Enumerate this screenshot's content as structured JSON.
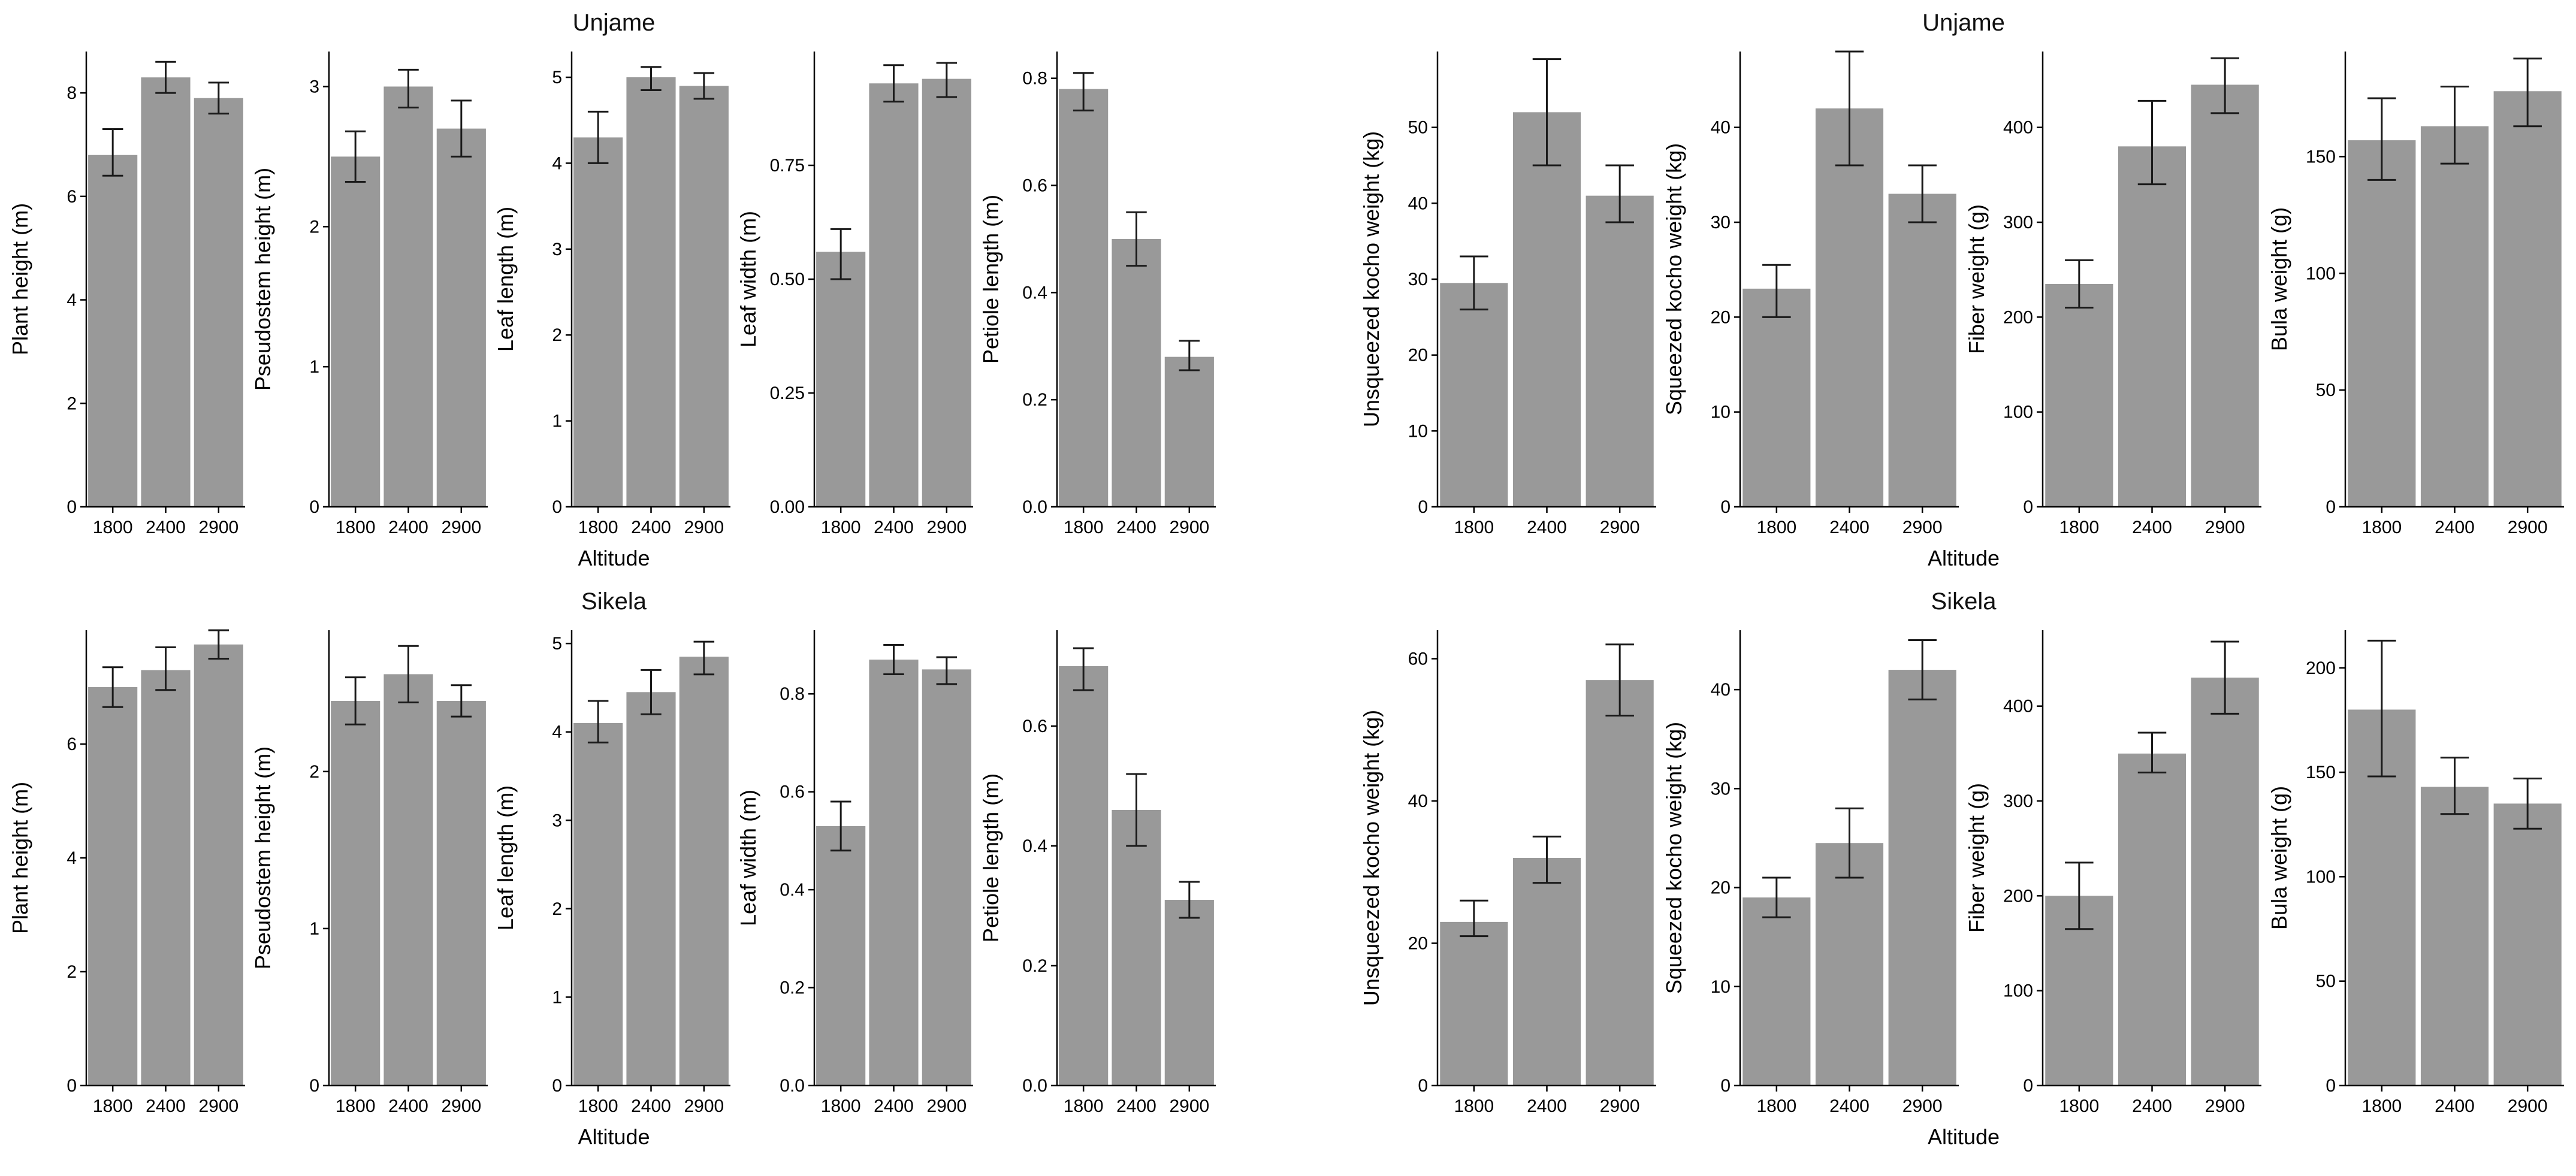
{
  "figure": {
    "xlabel": "Altitude",
    "bar_color": "#999999",
    "axis_color": "#000000",
    "error_bar_color": "#1a1a1a",
    "rows": [
      {
        "left_title": "Unjame",
        "right_title": "Unjame"
      },
      {
        "left_title": "Sikela",
        "right_title": "Sikela"
      }
    ]
  },
  "chart_data": [
    {
      "id": "unjame-plant-height",
      "type": "bar",
      "title": "Unjame",
      "xlabel": "Altitude",
      "ylabel": "Plant height (m)",
      "categories": [
        "1800",
        "2400",
        "2900"
      ],
      "values": [
        6.8,
        8.3,
        7.9
      ],
      "error_low": [
        6.4,
        8.0,
        7.6
      ],
      "error_high": [
        7.3,
        8.6,
        8.2
      ],
      "ytick_values": [
        0,
        2,
        4,
        6,
        8
      ],
      "ytick_labels": [
        "0",
        "2",
        "4",
        "6",
        "8"
      ],
      "ylim": [
        0,
        8.8
      ],
      "grid": false
    },
    {
      "id": "unjame-pseudostem-height",
      "type": "bar",
      "title": "Unjame",
      "xlabel": "Altitude",
      "ylabel": "Pseudostem height (m)",
      "categories": [
        "1800",
        "2400",
        "2900"
      ],
      "values": [
        2.5,
        3.0,
        2.7
      ],
      "error_low": [
        2.32,
        2.85,
        2.5
      ],
      "error_high": [
        2.68,
        3.12,
        2.9
      ],
      "ytick_values": [
        0,
        1,
        2,
        3
      ],
      "ytick_labels": [
        "0",
        "1",
        "2",
        "3"
      ],
      "ylim": [
        0,
        3.25
      ],
      "grid": false
    },
    {
      "id": "unjame-leaf-length",
      "type": "bar",
      "title": "Unjame",
      "xlabel": "Altitude",
      "ylabel": "Leaf length (m)",
      "categories": [
        "1800",
        "2400",
        "2900"
      ],
      "values": [
        4.3,
        5.0,
        4.9
      ],
      "error_low": [
        4.0,
        4.85,
        4.75
      ],
      "error_high": [
        4.6,
        5.12,
        5.05
      ],
      "ytick_values": [
        0,
        1,
        2,
        3,
        4,
        5
      ],
      "ytick_labels": [
        "0",
        "1",
        "2",
        "3",
        "4",
        "5"
      ],
      "ylim": [
        0,
        5.3
      ],
      "grid": false
    },
    {
      "id": "unjame-leaf-width",
      "type": "bar",
      "title": "Unjame",
      "xlabel": "Altitude",
      "ylabel": "Leaf width (m)",
      "categories": [
        "1800",
        "2400",
        "2900"
      ],
      "values": [
        0.56,
        0.93,
        0.94
      ],
      "error_low": [
        0.5,
        0.89,
        0.9
      ],
      "error_high": [
        0.61,
        0.97,
        0.975
      ],
      "ytick_values": [
        0,
        0.25,
        0.5,
        0.75
      ],
      "ytick_labels": [
        "0.00",
        "0.25",
        "0.50",
        "0.75"
      ],
      "ylim": [
        0,
        1.0
      ],
      "grid": false
    },
    {
      "id": "unjame-petiole-length",
      "type": "bar",
      "title": "Unjame",
      "xlabel": "Altitude",
      "ylabel": "Petiole length (m)",
      "categories": [
        "1800",
        "2400",
        "2900"
      ],
      "values": [
        0.78,
        0.5,
        0.28
      ],
      "error_low": [
        0.74,
        0.45,
        0.255
      ],
      "error_high": [
        0.81,
        0.55,
        0.31
      ],
      "ytick_values": [
        0,
        0.2,
        0.4,
        0.6,
        0.8
      ],
      "ytick_labels": [
        "0.0",
        "0.2",
        "0.4",
        "0.6",
        "0.8"
      ],
      "ylim": [
        0,
        0.85
      ],
      "grid": false
    },
    {
      "id": "unjame-unsqueezed-kocho-weight",
      "type": "bar",
      "title": "Unjame",
      "xlabel": "Altitude",
      "ylabel": "Unsqueezed kocho weight (kg)",
      "categories": [
        "1800",
        "2400",
        "2900"
      ],
      "values": [
        29.5,
        52,
        41
      ],
      "error_low": [
        26,
        45,
        37.5
      ],
      "error_high": [
        33,
        59,
        45
      ],
      "ytick_values": [
        0,
        10,
        20,
        30,
        40,
        50
      ],
      "ytick_labels": [
        "0",
        "10",
        "20",
        "30",
        "40",
        "50"
      ],
      "ylim": [
        0,
        60
      ],
      "grid": false
    },
    {
      "id": "unjame-squeezed-kocho-weight",
      "type": "bar",
      "title": "Unjame",
      "xlabel": "Altitude",
      "ylabel": "Squeezed kocho weight (kg)",
      "categories": [
        "1800",
        "2400",
        "2900"
      ],
      "values": [
        23,
        42,
        33
      ],
      "error_low": [
        20,
        36,
        30
      ],
      "error_high": [
        25.5,
        48,
        36
      ],
      "ytick_values": [
        0,
        10,
        20,
        30,
        40
      ],
      "ytick_labels": [
        "0",
        "10",
        "20",
        "30",
        "40"
      ],
      "ylim": [
        0,
        48
      ],
      "grid": false
    },
    {
      "id": "unjame-fiber-weight",
      "type": "bar",
      "title": "Unjame",
      "xlabel": "Altitude",
      "ylabel": "Fiber weight (g)",
      "categories": [
        "1800",
        "2400",
        "2900"
      ],
      "values": [
        235,
        380,
        445
      ],
      "error_low": [
        210,
        340,
        415
      ],
      "error_high": [
        260,
        428,
        473
      ],
      "ytick_values": [
        0,
        100,
        200,
        300,
        400
      ],
      "ytick_labels": [
        "0",
        "100",
        "200",
        "300",
        "400"
      ],
      "ylim": [
        0,
        480
      ],
      "grid": false
    },
    {
      "id": "unjame-bula-weight",
      "type": "bar",
      "title": "Unjame",
      "xlabel": "Altitude",
      "ylabel": "Bula weight (g)",
      "categories": [
        "1800",
        "2400",
        "2900"
      ],
      "values": [
        157,
        163,
        178
      ],
      "error_low": [
        140,
        147,
        163
      ],
      "error_high": [
        175,
        180,
        192
      ],
      "ytick_values": [
        0,
        50,
        100,
        150
      ],
      "ytick_labels": [
        "0",
        "50",
        "100",
        "150"
      ],
      "ylim": [
        0,
        195
      ],
      "grid": false
    },
    {
      "id": "sikela-plant-height",
      "type": "bar",
      "title": "Sikela",
      "xlabel": "Altitude",
      "ylabel": "Plant height (m)",
      "categories": [
        "1800",
        "2400",
        "2900"
      ],
      "values": [
        7.0,
        7.3,
        7.75
      ],
      "error_low": [
        6.65,
        6.95,
        7.5
      ],
      "error_high": [
        7.35,
        7.7,
        8.0
      ],
      "ytick_values": [
        0,
        2,
        4,
        6
      ],
      "ytick_labels": [
        "0",
        "2",
        "4",
        "6"
      ],
      "ylim": [
        0,
        8.0
      ],
      "grid": false
    },
    {
      "id": "sikela-pseudostem-height",
      "type": "bar",
      "title": "Sikela",
      "xlabel": "Altitude",
      "ylabel": "Pseudostem height (m)",
      "categories": [
        "1800",
        "2400",
        "2900"
      ],
      "values": [
        2.45,
        2.62,
        2.45
      ],
      "error_low": [
        2.3,
        2.44,
        2.35
      ],
      "error_high": [
        2.6,
        2.8,
        2.55
      ],
      "ytick_values": [
        0,
        1,
        2
      ],
      "ytick_labels": [
        "0",
        "1",
        "2"
      ],
      "ylim": [
        0,
        2.9
      ],
      "grid": false
    },
    {
      "id": "sikela-leaf-length",
      "type": "bar",
      "title": "Sikela",
      "xlabel": "Altitude",
      "ylabel": "Leaf length (m)",
      "categories": [
        "1800",
        "2400",
        "2900"
      ],
      "values": [
        4.1,
        4.45,
        4.85
      ],
      "error_low": [
        3.88,
        4.2,
        4.65
      ],
      "error_high": [
        4.35,
        4.7,
        5.02
      ],
      "ytick_values": [
        0,
        1,
        2,
        3,
        4,
        5
      ],
      "ytick_labels": [
        "0",
        "1",
        "2",
        "3",
        "4",
        "5"
      ],
      "ylim": [
        0,
        5.15
      ],
      "grid": false
    },
    {
      "id": "sikela-leaf-width",
      "type": "bar",
      "title": "Sikela",
      "xlabel": "Altitude",
      "ylabel": "Leaf width (m)",
      "categories": [
        "1800",
        "2400",
        "2900"
      ],
      "values": [
        0.53,
        0.87,
        0.85
      ],
      "error_low": [
        0.48,
        0.84,
        0.82
      ],
      "error_high": [
        0.58,
        0.9,
        0.875
      ],
      "ytick_values": [
        0,
        0.2,
        0.4,
        0.6,
        0.8
      ],
      "ytick_labels": [
        "0.0",
        "0.2",
        "0.4",
        "0.6",
        "0.8"
      ],
      "ylim": [
        0,
        0.93
      ],
      "grid": false
    },
    {
      "id": "sikela-petiole-length",
      "type": "bar",
      "title": "Sikela",
      "xlabel": "Altitude",
      "ylabel": "Petiole length (m)",
      "categories": [
        "1800",
        "2400",
        "2900"
      ],
      "values": [
        0.7,
        0.46,
        0.31
      ],
      "error_low": [
        0.66,
        0.4,
        0.28
      ],
      "error_high": [
        0.73,
        0.52,
        0.34
      ],
      "ytick_values": [
        0,
        0.2,
        0.4,
        0.6
      ],
      "ytick_labels": [
        "0.0",
        "0.2",
        "0.4",
        "0.6"
      ],
      "ylim": [
        0,
        0.76
      ],
      "grid": false
    },
    {
      "id": "sikela-unsqueezed-kocho-weight",
      "type": "bar",
      "title": "Sikela",
      "xlabel": "Altitude",
      "ylabel": "Unsqueezed kocho weight (kg)",
      "categories": [
        "1800",
        "2400",
        "2900"
      ],
      "values": [
        23,
        32,
        57
      ],
      "error_low": [
        21,
        28.5,
        52
      ],
      "error_high": [
        26,
        35,
        62
      ],
      "ytick_values": [
        0,
        20,
        40,
        60
      ],
      "ytick_labels": [
        "0",
        "20",
        "40",
        "60"
      ],
      "ylim": [
        0,
        64
      ],
      "grid": false
    },
    {
      "id": "sikela-squeezed-kocho-weight",
      "type": "bar",
      "title": "Sikela",
      "xlabel": "Altitude",
      "ylabel": "Squeezed kocho weight (kg)",
      "categories": [
        "1800",
        "2400",
        "2900"
      ],
      "values": [
        19,
        24.5,
        42
      ],
      "error_low": [
        17,
        21,
        39
      ],
      "error_high": [
        21,
        28,
        45
      ],
      "ytick_values": [
        0,
        10,
        20,
        30,
        40
      ],
      "ytick_labels": [
        "0",
        "10",
        "20",
        "30",
        "40"
      ],
      "ylim": [
        0,
        46
      ],
      "grid": false
    },
    {
      "id": "sikela-fiber-weight",
      "type": "bar",
      "title": "Sikela",
      "xlabel": "Altitude",
      "ylabel": "Fiber weight (g)",
      "categories": [
        "1800",
        "2400",
        "2900"
      ],
      "values": [
        200,
        350,
        430
      ],
      "error_low": [
        165,
        330,
        392
      ],
      "error_high": [
        235,
        372,
        468
      ],
      "ytick_values": [
        0,
        100,
        200,
        300,
        400
      ],
      "ytick_labels": [
        "0",
        "100",
        "200",
        "300",
        "400"
      ],
      "ylim": [
        0,
        480
      ],
      "grid": false
    },
    {
      "id": "sikela-bula-weight",
      "type": "bar",
      "title": "Sikela",
      "xlabel": "Altitude",
      "ylabel": "Bula weight (g)",
      "categories": [
        "1800",
        "2400",
        "2900"
      ],
      "values": [
        180,
        143,
        135
      ],
      "error_low": [
        148,
        130,
        123
      ],
      "error_high": [
        213,
        157,
        147
      ],
      "ytick_values": [
        0,
        50,
        100,
        150,
        200
      ],
      "ytick_labels": [
        "0",
        "50",
        "100",
        "150",
        "200"
      ],
      "ylim": [
        0,
        218
      ],
      "grid": false
    }
  ]
}
